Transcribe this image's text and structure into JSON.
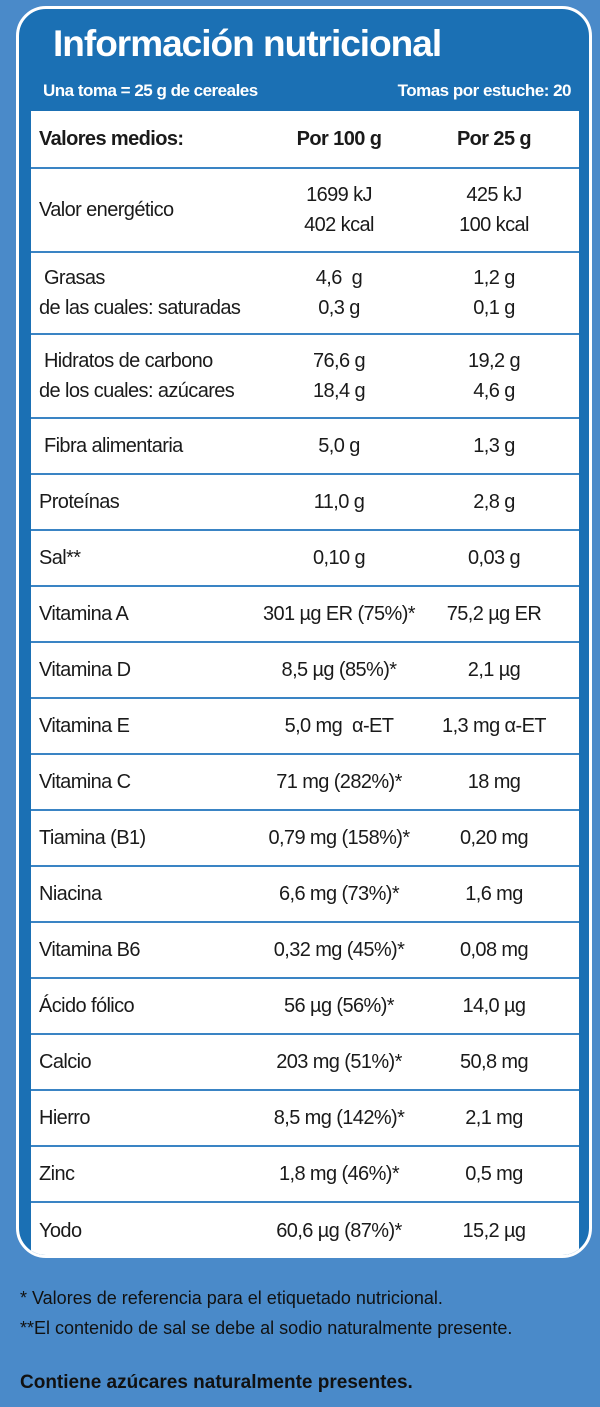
{
  "title": "Información nutricional",
  "serving_text": "Una toma = 25 g de cereales",
  "servings_per_pack": "Tomas por estuche: 20",
  "header": {
    "label": "Valores medios:",
    "col_100": "Por 100 g",
    "col_25": "Por 25 g"
  },
  "rows": [
    {
      "label": [
        "Valor energético"
      ],
      "per100": [
        "1699 kJ",
        "402 kcal"
      ],
      "per25": [
        "425 kJ",
        "100 kcal"
      ]
    },
    {
      "label": [
        " Grasas",
        "de las cuales: saturadas"
      ],
      "per100": [
        "4,6  g",
        "0,3 g"
      ],
      "per25": [
        "1,2 g",
        "0,1 g"
      ]
    },
    {
      "label": [
        " Hidratos de carbono",
        "de los cuales: azúcares"
      ],
      "per100": [
        "76,6 g",
        "18,4 g"
      ],
      "per25": [
        "19,2 g",
        "4,6 g"
      ]
    },
    {
      "label": [
        " Fibra alimentaria"
      ],
      "per100": [
        "5,0 g"
      ],
      "per25": [
        "1,3 g"
      ]
    },
    {
      "label": [
        "Proteínas"
      ],
      "per100": [
        "11,0 g"
      ],
      "per25": [
        "2,8 g"
      ]
    },
    {
      "label": [
        "Sal**"
      ],
      "per100": [
        "0,10 g"
      ],
      "per25": [
        "0,03 g"
      ]
    },
    {
      "label": [
        "Vitamina A"
      ],
      "per100": [
        "301 µg ER (75%)*"
      ],
      "per25": [
        "75,2 µg ER"
      ]
    },
    {
      "label": [
        "Vitamina D"
      ],
      "per100": [
        "8,5 µg (85%)*"
      ],
      "per25": [
        "2,1 µg"
      ]
    },
    {
      "label": [
        "Vitamina E"
      ],
      "per100": [
        "5,0 mg  α-ET"
      ],
      "per25": [
        "1,3 mg α-ET"
      ]
    },
    {
      "label": [
        "Vitamina C"
      ],
      "per100": [
        "71 mg (282%)*"
      ],
      "per25": [
        "18 mg"
      ]
    },
    {
      "label": [
        "Tiamina (B1)"
      ],
      "per100": [
        "0,79 mg (158%)*"
      ],
      "per25": [
        "0,20 mg"
      ]
    },
    {
      "label": [
        "Niacina"
      ],
      "per100": [
        "6,6 mg (73%)*"
      ],
      "per25": [
        "1,6 mg"
      ]
    },
    {
      "label": [
        "Vitamina B6"
      ],
      "per100": [
        "0,32 mg (45%)*"
      ],
      "per25": [
        "0,08 mg"
      ]
    },
    {
      "label": [
        "Ácido fólico"
      ],
      "per100": [
        "56 µg (56%)*"
      ],
      "per25": [
        "14,0 µg"
      ]
    },
    {
      "label": [
        "Calcio"
      ],
      "per100": [
        "203 mg (51%)*"
      ],
      "per25": [
        "50,8 mg"
      ]
    },
    {
      "label": [
        "Hierro"
      ],
      "per100": [
        "8,5 mg (142%)*"
      ],
      "per25": [
        "2,1 mg"
      ]
    },
    {
      "label": [
        "Zinc"
      ],
      "per100": [
        "1,8 mg (46%)*"
      ],
      "per25": [
        "0,5 mg"
      ]
    },
    {
      "label": [
        "Yodo"
      ],
      "per100": [
        "60,6 µg (87%)*"
      ],
      "per25": [
        "15,2 µg"
      ]
    }
  ],
  "footnotes": [
    "* Valores de referencia para el etiquetado nutricional.",
    "**El contenido de sal se debe al sodio naturalmente presente."
  ],
  "footer_bold": "Contiene azúcares naturalmente presentes.",
  "colors": {
    "panel": "#1b70b4",
    "background": "#4a8ac9",
    "row_divider": "#3a84c4",
    "table_bg": "#ffffff"
  }
}
